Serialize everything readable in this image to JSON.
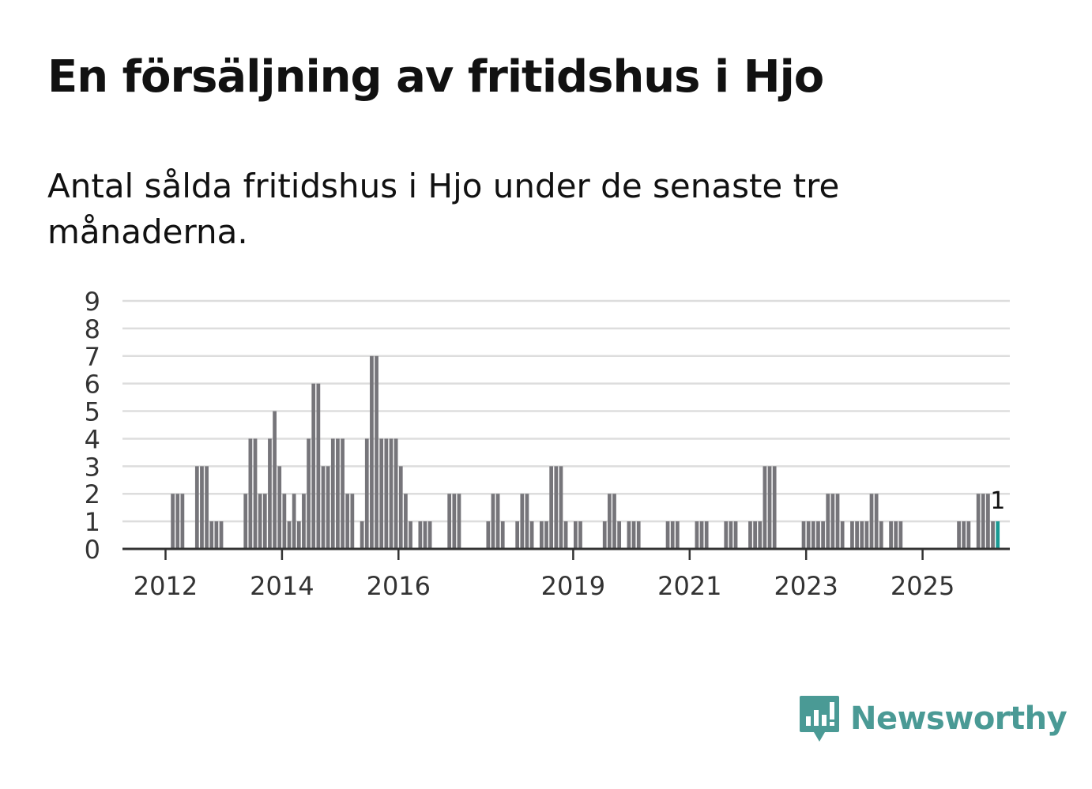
{
  "title": "En försäljning av fritidshus i Hjo",
  "subtitle": "Antal sålda fritidshus i Hjo under de senaste tre månaderna.",
  "colors": {
    "bar": "#76757a",
    "highlight": "#1a9a94",
    "grid": "#dddddd",
    "axis": "#333333",
    "brand": "#4a9a95"
  },
  "brand": {
    "name": "Newsworthy",
    "icon": "newsworthy-chart-bubble-icon"
  },
  "chart_data": {
    "type": "bar",
    "title": "En försäljning av fritidshus i Hjo",
    "xlabel": "",
    "ylabel": "",
    "ylim": [
      0,
      9
    ],
    "yticks": [
      0,
      1,
      2,
      3,
      4,
      5,
      6,
      7,
      8,
      9
    ],
    "xlim_months": [
      2011,
      2026.5
    ],
    "xticks": [
      {
        "label": "2012",
        "year": 2012
      },
      {
        "label": "2014",
        "year": 2014
      },
      {
        "label": "2016",
        "year": 2016
      },
      {
        "label": "2019",
        "year": 2019
      },
      {
        "label": "2021",
        "year": 2021
      },
      {
        "label": "2023",
        "year": 2023
      },
      {
        "label": "2025",
        "year": 2025
      }
    ],
    "start": "2012-01",
    "series": [
      {
        "name": "Antal sålda fritidshus",
        "values": [
          0,
          2,
          2,
          2,
          0,
          0,
          3,
          3,
          3,
          1,
          1,
          1,
          0,
          0,
          0,
          0,
          2,
          4,
          4,
          2,
          2,
          4,
          5,
          3,
          2,
          1,
          2,
          1,
          2,
          4,
          6,
          6,
          3,
          3,
          4,
          4,
          4,
          2,
          2,
          0,
          1,
          4,
          7,
          7,
          4,
          4,
          4,
          4,
          3,
          2,
          1,
          0,
          1,
          1,
          1,
          0,
          0,
          0,
          2,
          2,
          2,
          0,
          0,
          0,
          0,
          0,
          1,
          2,
          2,
          1,
          0,
          0,
          1,
          2,
          2,
          1,
          0,
          1,
          1,
          3,
          3,
          3,
          1,
          0,
          1,
          1,
          0,
          0,
          0,
          0,
          1,
          2,
          2,
          1,
          0,
          1,
          1,
          1,
          0,
          0,
          0,
          0,
          0,
          1,
          1,
          1,
          0,
          0,
          0,
          1,
          1,
          1,
          0,
          0,
          0,
          1,
          1,
          1,
          0,
          0,
          1,
          1,
          1,
          3,
          3,
          3,
          0,
          0,
          0,
          0,
          0,
          1,
          1,
          1,
          1,
          1,
          2,
          2,
          2,
          1,
          0,
          1,
          1,
          1,
          1,
          2,
          2,
          1,
          0,
          1,
          1,
          1,
          0,
          0,
          0,
          0,
          0,
          0,
          0,
          0,
          0,
          0,
          0,
          1,
          1,
          1,
          0,
          2,
          2,
          2,
          1,
          1
        ]
      }
    ],
    "highlight": {
      "index": 171,
      "value": 1,
      "label": "1"
    }
  }
}
